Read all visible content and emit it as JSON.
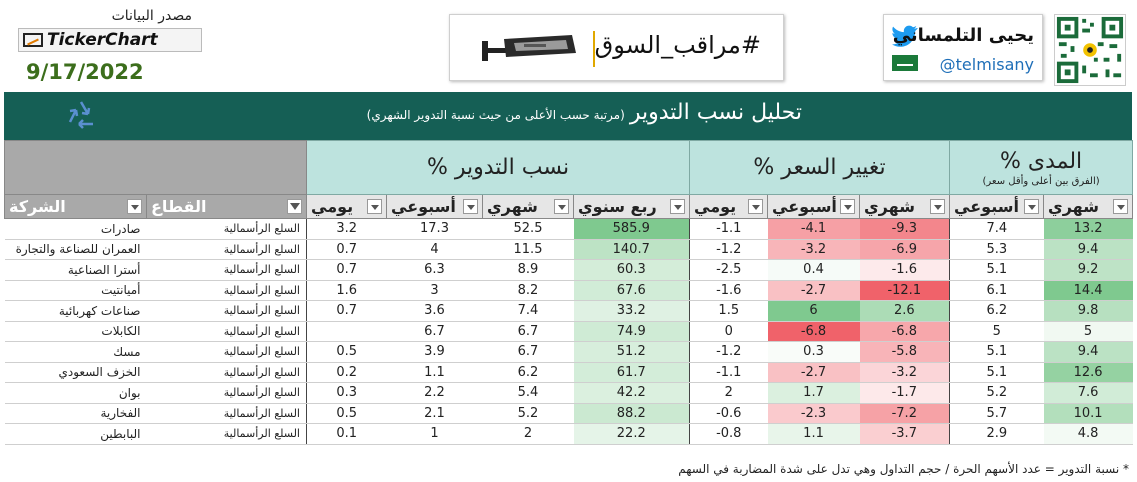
{
  "header": {
    "data_source_label": "مصدر البيانات",
    "ticker_logo_text": "TickerChart",
    "date": "9/17/2022",
    "brand_text": "#مراقب_السوق",
    "author_name": "يحيى التلمساني",
    "handle": "@telmisany"
  },
  "icons": {
    "camera": "security-camera-icon",
    "twitter": "twitter-bird-icon",
    "flag": "saudi-flag-icon",
    "recycle": "recycle-icon",
    "qr": "qr-code-icon"
  },
  "colors": {
    "banner": "#155f55",
    "header_group": "#bde3de",
    "green_scale": "#7fc98f",
    "red_scale": "#f0626a"
  },
  "banner": {
    "title": "تحليل نسب التدوير",
    "subtitle": "(مرتبة حسب الأعلى من حيث نسبة التدوير الشهري)"
  },
  "groups": {
    "turnover": "نسب التدوير %",
    "price_change": "تغيير السعر %",
    "range": "المدى %",
    "range_note": "(الفرق بين أعلى وأقل سعر)"
  },
  "columns": {
    "company": "الشركة",
    "sector": "القطاع",
    "daily": "يومي",
    "weekly": "أسبوعي",
    "monthly": "شهري",
    "quarterly": "ربع سنوي"
  },
  "rows": [
    {
      "company": "صادرات",
      "sector": "السلع الرأسمالية",
      "t_d": "3.2",
      "t_w": "17.3",
      "t_m": "52.5",
      "t_q": "585.9",
      "p_d": "-1.1",
      "p_w": "-4.1",
      "p_m": "-9.3",
      "r_w": "7.4",
      "r_m": "13.2"
    },
    {
      "company": "العمران للصناعة والتجارة",
      "sector": "السلع الرأسمالية",
      "t_d": "0.7",
      "t_w": "4",
      "t_m": "11.5",
      "t_q": "140.7",
      "p_d": "-1.2",
      "p_w": "-3.2",
      "p_m": "-6.9",
      "r_w": "5.3",
      "r_m": "9.4"
    },
    {
      "company": "أسترا الصناعية",
      "sector": "السلع الرأسمالية",
      "t_d": "0.7",
      "t_w": "6.3",
      "t_m": "8.9",
      "t_q": "60.3",
      "p_d": "-2.5",
      "p_w": "0.4",
      "p_m": "-1.6",
      "r_w": "5.1",
      "r_m": "9.2"
    },
    {
      "company": "أميانتيت",
      "sector": "السلع الرأسمالية",
      "t_d": "1.6",
      "t_w": "3",
      "t_m": "8.2",
      "t_q": "67.6",
      "p_d": "-1.6",
      "p_w": "-2.7",
      "p_m": "-12.1",
      "r_w": "6.1",
      "r_m": "14.4"
    },
    {
      "company": "صناعات كهربائية",
      "sector": "السلع الرأسمالية",
      "t_d": "0.7",
      "t_w": "3.6",
      "t_m": "7.4",
      "t_q": "33.2",
      "p_d": "1.5",
      "p_w": "6",
      "p_m": "2.6",
      "r_w": "6.2",
      "r_m": "9.8"
    },
    {
      "company": "الكابلات",
      "sector": "السلع الرأسمالية",
      "t_d": "",
      "t_w": "6.7",
      "t_m": "6.7",
      "t_q": "74.9",
      "p_d": "0",
      "p_w": "-6.8",
      "p_m": "-6.8",
      "r_w": "5",
      "r_m": "5"
    },
    {
      "company": "مسك",
      "sector": "السلع الرأسمالية",
      "t_d": "0.5",
      "t_w": "3.9",
      "t_m": "6.7",
      "t_q": "51.2",
      "p_d": "-1.2",
      "p_w": "0.3",
      "p_m": "-5.8",
      "r_w": "5.1",
      "r_m": "9.4"
    },
    {
      "company": "الخزف السعودي",
      "sector": "السلع الرأسمالية",
      "t_d": "0.2",
      "t_w": "1.1",
      "t_m": "6.2",
      "t_q": "61.7",
      "p_d": "-1.1",
      "p_w": "-2.7",
      "p_m": "-3.2",
      "r_w": "5.1",
      "r_m": "12.6"
    },
    {
      "company": "بوان",
      "sector": "السلع الرأسمالية",
      "t_d": "0.3",
      "t_w": "2.2",
      "t_m": "5.4",
      "t_q": "42.2",
      "p_d": "2",
      "p_w": "1.7",
      "p_m": "-1.7",
      "r_w": "5.2",
      "r_m": "7.6"
    },
    {
      "company": "الفخارية",
      "sector": "السلع الرأسمالية",
      "t_d": "0.5",
      "t_w": "2.1",
      "t_m": "5.2",
      "t_q": "88.2",
      "p_d": "-0.6",
      "p_w": "-2.3",
      "p_m": "-7.2",
      "r_w": "5.7",
      "r_m": "10.1"
    },
    {
      "company": "البابطين",
      "sector": "السلع الرأسمالية",
      "t_d": "0.1",
      "t_w": "1",
      "t_m": "2",
      "t_q": "22.2",
      "p_d": "-0.8",
      "p_w": "1.1",
      "p_m": "-3.7",
      "r_w": "2.9",
      "r_m": "4.8"
    }
  ],
  "footnote": "* نسبة التدوير = عدد الأسهم الحرة / حجم التداول وهي تدل على شدة المضاربة في السهم"
}
